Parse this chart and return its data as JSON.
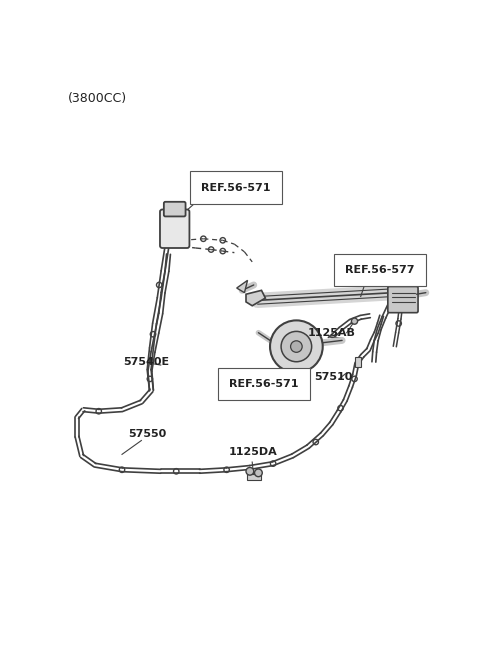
{
  "title": "(3800CC)",
  "bg": "#ffffff",
  "lc": "#404040",
  "figsize": [
    4.8,
    6.55
  ],
  "dpi": 100,
  "xlim": [
    0,
    480
  ],
  "ylim": [
    0,
    655
  ]
}
